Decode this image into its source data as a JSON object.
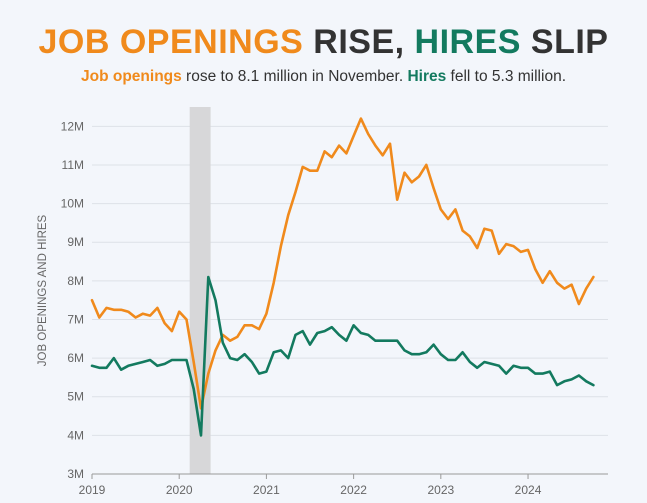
{
  "header": {
    "title_part1": "JOB OPENINGS",
    "title_part2": " RISE, ",
    "title_part3": "HIRES",
    "title_part4": " SLIP",
    "subtitle_part1": "Job openings",
    "subtitle_part2": " rose to 8.1 million in November. ",
    "subtitle_part3": "Hires",
    "subtitle_part4": " fell to 5.3 million."
  },
  "colors": {
    "openings": "#f08a1c",
    "hires": "#137a5f",
    "recession": "#d7d7d9"
  },
  "chart_data": {
    "type": "line",
    "title": "JOB OPENINGS RISE, HIRES SLIP",
    "subtitle": "Job openings rose to 8.1 million in November. Hires fell to 5.3 million.",
    "ylabel": "JOB OPENINGS AND HIRES",
    "xlabel": "",
    "x_start": "2019-01",
    "x_range": [
      2019.0,
      2024.917
    ],
    "ylim": [
      3,
      12.5
    ],
    "yticks": [
      3,
      4,
      5,
      6,
      7,
      8,
      9,
      10,
      11,
      12
    ],
    "ytick_labels": [
      "3M",
      "4M",
      "5M",
      "6M",
      "7M",
      "8M",
      "9M",
      "10M",
      "11M",
      "12M"
    ],
    "xticks": [
      2019,
      2020,
      2021,
      2022,
      2023,
      2024
    ],
    "xtick_labels": [
      "2019",
      "2020",
      "2021",
      "2022",
      "2023",
      "2024"
    ],
    "recession": [
      2020.12,
      2020.36
    ],
    "series": [
      {
        "name": "Job openings",
        "values": [
          7.5,
          7.05,
          7.3,
          7.25,
          7.25,
          7.2,
          7.05,
          7.15,
          7.1,
          7.3,
          6.9,
          6.7,
          7.2,
          7.0,
          5.9,
          4.7,
          5.6,
          6.2,
          6.6,
          6.45,
          6.55,
          6.85,
          6.85,
          6.75,
          7.15,
          7.95,
          8.9,
          9.7,
          10.3,
          10.95,
          10.85,
          10.85,
          11.35,
          11.2,
          11.5,
          11.3,
          11.75,
          12.2,
          11.8,
          11.5,
          11.25,
          11.55,
          10.1,
          10.8,
          10.55,
          10.7,
          11.0,
          10.4,
          9.85,
          9.6,
          9.85,
          9.3,
          9.15,
          8.85,
          9.35,
          9.3,
          8.7,
          8.95,
          8.9,
          8.75,
          8.8,
          8.3,
          7.95,
          8.25,
          7.95,
          7.8,
          7.9,
          7.4,
          7.8,
          8.1
        ]
      },
      {
        "name": "Hires",
        "values": [
          5.8,
          5.75,
          5.75,
          6.0,
          5.7,
          5.8,
          5.85,
          5.9,
          5.95,
          5.8,
          5.85,
          5.95,
          5.95,
          5.95,
          5.2,
          4.0,
          8.1,
          7.5,
          6.4,
          6.0,
          5.95,
          6.1,
          5.9,
          5.6,
          5.65,
          6.15,
          6.2,
          6.0,
          6.6,
          6.7,
          6.35,
          6.65,
          6.7,
          6.8,
          6.6,
          6.45,
          6.85,
          6.65,
          6.6,
          6.45,
          6.45,
          6.45,
          6.45,
          6.2,
          6.1,
          6.1,
          6.15,
          6.35,
          6.1,
          5.95,
          5.95,
          6.15,
          5.9,
          5.75,
          5.9,
          5.85,
          5.8,
          5.6,
          5.8,
          5.75,
          5.75,
          5.6,
          5.6,
          5.65,
          5.3,
          5.4,
          5.45,
          5.55,
          5.4,
          5.3
        ]
      }
    ]
  }
}
